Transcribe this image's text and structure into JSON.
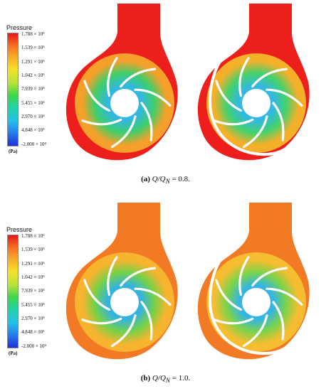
{
  "legend": {
    "title": "Pressure",
    "unit": "(Pa)",
    "ticks": [
      "1.788 × 10⁵",
      "1.539 × 10⁵",
      "1.291 × 10⁵",
      "1.042 × 10⁵",
      "7.939 × 10⁴",
      "5.455 × 10⁴",
      "2.970 × 10⁴",
      "4.848 × 10³",
      "-2.000 × 10⁴"
    ]
  },
  "captions": [
    {
      "label": "(a)",
      "math": "Q/Q",
      "sub": "N",
      "rest": " = 0.8."
    },
    {
      "label": "(b)",
      "math": "Q/Q",
      "sub": "N",
      "rest": " = 1.0."
    }
  ],
  "colors": {
    "high": "#e8141b",
    "mid_high": "#f59a2a",
    "mid": "#f3e030",
    "mid_low": "#3fd64a",
    "low": "#25b8e6",
    "lowest": "#1f2fd8"
  }
}
